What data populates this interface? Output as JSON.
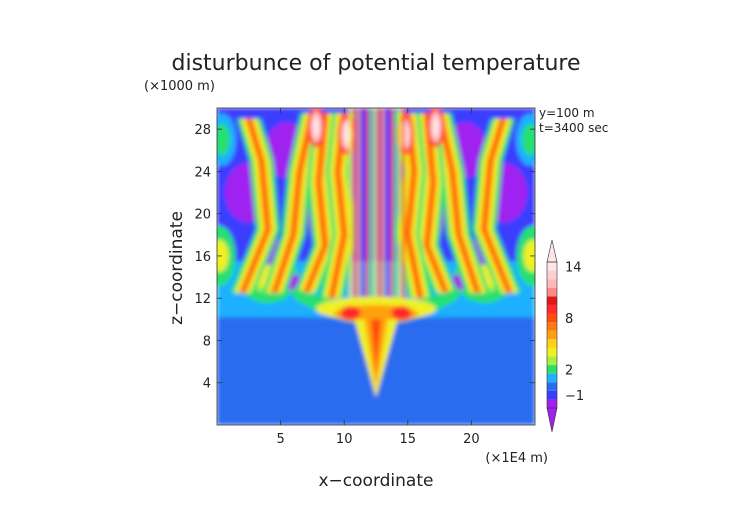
{
  "chart_data": {
    "type": "heatmap",
    "title": "disturbunce of potential temperature",
    "xlabel": "x−coordinate",
    "ylabel": "z−coordinate",
    "x_unit": "(×1E4 m)",
    "y_unit": "(×1000 m)",
    "xlim": [
      0,
      25
    ],
    "ylim": [
      0,
      30
    ],
    "x_ticks": [
      5,
      10,
      15,
      20
    ],
    "y_ticks": [
      4,
      8,
      12,
      16,
      20,
      24,
      28
    ],
    "annotations": [
      "y=100 m",
      "t=3400 sec"
    ],
    "colorbar": {
      "levels": [
        -2,
        -1,
        0,
        1,
        2,
        3,
        4,
        5,
        6,
        7,
        8,
        9,
        10,
        11,
        12,
        13,
        14,
        15
      ],
      "colors": [
        "#a020f0",
        "#3a3cff",
        "#2a6cf0",
        "#1fb0ff",
        "#28e070",
        "#a8f040",
        "#f0f020",
        "#ffd010",
        "#ffa010",
        "#ff7a10",
        "#ff4a10",
        "#ff2a2a",
        "#e01818",
        "#ff8a8a",
        "#ffb8b8",
        "#ffd0d0",
        "#ffe6e6"
      ],
      "tick_labels": [
        "−1",
        "2",
        "8",
        "14"
      ],
      "tick_values": [
        -1,
        2,
        8,
        14
      ]
    }
  }
}
